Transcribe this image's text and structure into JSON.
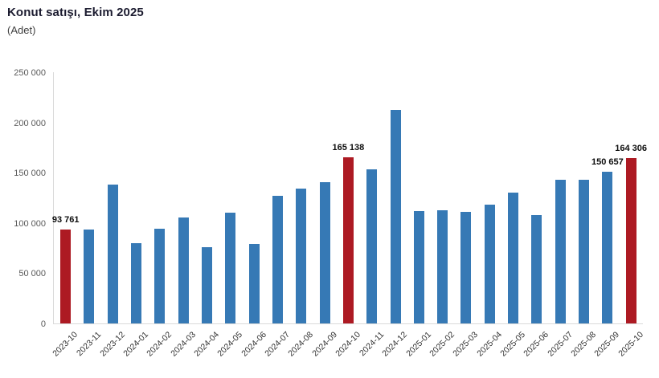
{
  "header": {
    "title": "Konut satışı, Ekim 2025",
    "subtitle": "(Adet)"
  },
  "colors": {
    "bar_default": "#3679B5",
    "bar_highlight": "#AD1A23",
    "axis_line": "#D9D9D9",
    "ytick_label": "#595959",
    "xtick_label": "#333333",
    "value_label": "#0D0D0D",
    "title_text": "#1C1C30"
  },
  "chart_data": {
    "type": "bar",
    "title": "Konut satışı, Ekim 2025",
    "xlabel": "",
    "ylabel": "Adet",
    "ylim": [
      0,
      250000
    ],
    "grid": false,
    "legend": "none",
    "yticks": [
      0,
      50000,
      100000,
      150000,
      200000,
      250000
    ],
    "ytick_labels": [
      "0",
      "50 000",
      "100 000",
      "150 000",
      "200 000",
      "250 000"
    ],
    "categories": [
      "2023-10",
      "2023-11",
      "2023-12",
      "2024-01",
      "2024-02",
      "2024-03",
      "2024-04",
      "2024-05",
      "2024-06",
      "2024-07",
      "2024-08",
      "2024-09",
      "2024-10",
      "2024-11",
      "2024-12",
      "2025-01",
      "2025-02",
      "2025-03",
      "2025-04",
      "2025-05",
      "2025-06",
      "2025-07",
      "2025-08",
      "2025-09",
      "2025-10"
    ],
    "values": [
      93761,
      93514,
      138577,
      80308,
      93902,
      105394,
      75569,
      110588,
      79313,
      127088,
      134155,
      140919,
      165138,
      153014,
      212637,
      112173,
      112818,
      110795,
      118359,
      130025,
      107723,
      142858,
      143319,
      150657,
      164306
    ],
    "highlighted_categories": [
      "2023-10",
      "2024-10",
      "2025-10"
    ],
    "data_labels": {
      "2023-10": "93 761",
      "2024-10": "165 138",
      "2025-09": "150 657",
      "2025-10": "164 306"
    }
  }
}
